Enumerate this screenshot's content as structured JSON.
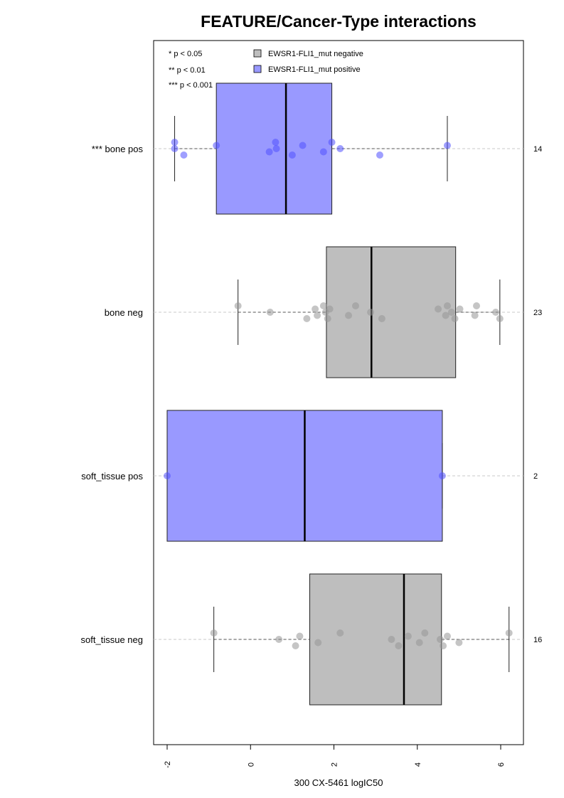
{
  "chart_data": {
    "type": "box",
    "title": "FEATURE/Cancer-Type interactions",
    "xlabel": "300 CX-5461 logIC50",
    "xlim": [
      -2.3,
      6.6
    ],
    "xticks": [
      -2,
      0,
      2,
      4,
      6
    ],
    "xtick_labels": [
      "-2",
      "0",
      "2",
      "4",
      "6"
    ],
    "orientation": "horizontal",
    "legend": {
      "placement": "top",
      "significance": [
        "* p < 0.05",
        "** p < 0.01",
        "*** p < 0.001"
      ],
      "entries": [
        {
          "label": "EWSR1-FLI1_mut negative",
          "color": "#bebebe"
        },
        {
          "label": "EWSR1-FLI1_mut positive",
          "color": "#9999ff"
        }
      ]
    },
    "groups": [
      {
        "label": "*** bone pos",
        "n": "14",
        "status": "positive",
        "whisker_low": -1.82,
        "q1": -0.82,
        "median": 0.85,
        "q3": 1.95,
        "whisker_high": 4.72,
        "points": [
          -1.82,
          -1.82,
          -1.6,
          -0.82,
          0.45,
          0.6,
          0.62,
          1.0,
          1.25,
          1.75,
          1.95,
          2.15,
          3.1,
          4.72
        ]
      },
      {
        "label": "bone neg",
        "n": "23",
        "status": "negative",
        "whisker_low": -0.3,
        "q1": 1.82,
        "median": 2.9,
        "q3": 4.92,
        "whisker_high": 5.98,
        "points": [
          -0.3,
          0.47,
          1.35,
          1.55,
          1.6,
          1.75,
          1.8,
          1.85,
          1.9,
          2.35,
          2.52,
          2.88,
          3.15,
          4.5,
          4.68,
          4.72,
          4.82,
          4.9,
          5.02,
          5.38,
          5.42,
          5.88,
          5.98
        ]
      },
      {
        "label": "soft_tissue pos",
        "n": "2",
        "status": "positive",
        "whisker_low": -2.0,
        "q1": -2.0,
        "median": 1.3,
        "q3": 4.6,
        "whisker_high": 4.6,
        "points": [
          -2.0,
          4.6
        ]
      },
      {
        "label": "soft_tissue neg",
        "n": "16",
        "status": "negative",
        "whisker_low": -0.88,
        "q1": 1.42,
        "median": 3.68,
        "q3": 4.58,
        "whisker_high": 6.2,
        "points": [
          -0.88,
          0.68,
          1.08,
          1.18,
          1.62,
          2.15,
          3.38,
          3.55,
          3.78,
          4.05,
          4.18,
          4.55,
          4.62,
          4.72,
          5.0,
          6.2
        ]
      }
    ]
  }
}
